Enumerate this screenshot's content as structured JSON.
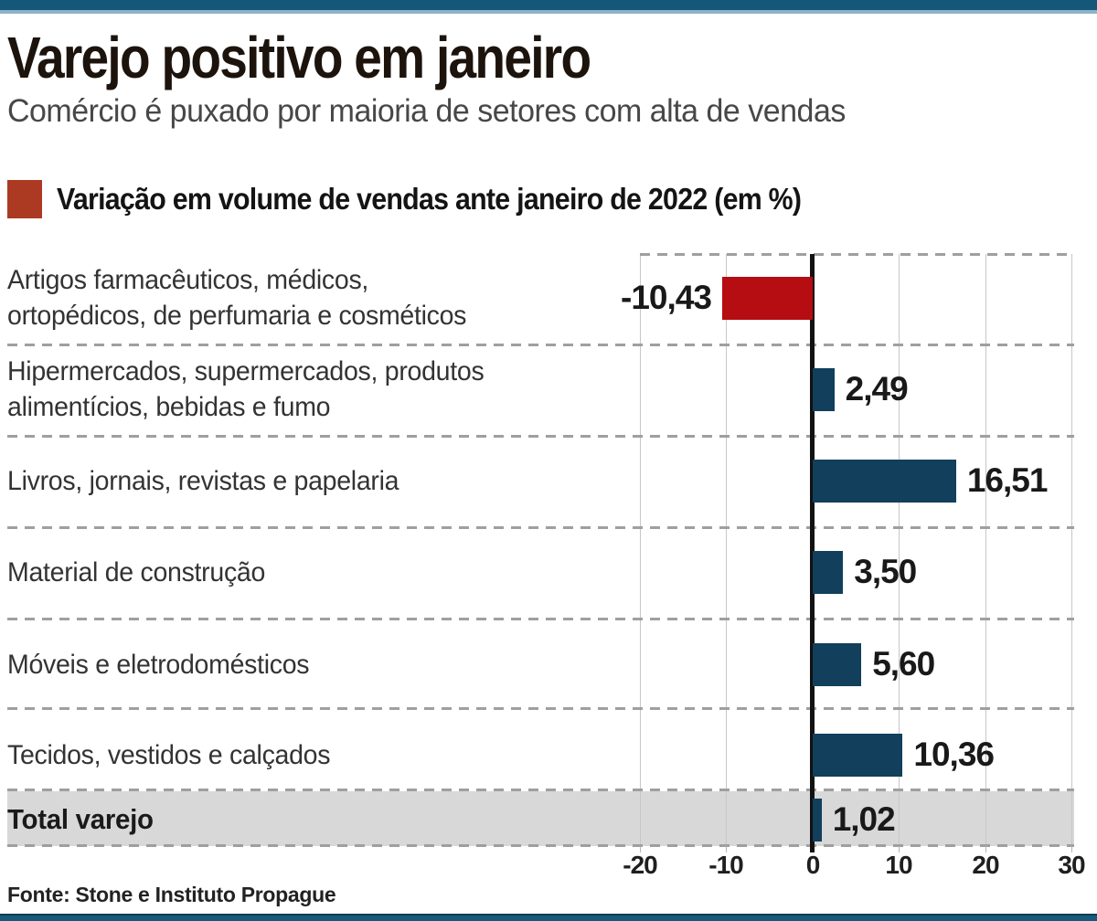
{
  "header": {
    "title": "Varejo positivo em janeiro",
    "subtitle": "Comércio é puxado por maioria de setores com alta de vendas"
  },
  "legend": {
    "label": "Variação em volume de vendas ante janeiro de 2022 (em %)",
    "chip_color": "#ac3a22"
  },
  "chart_data": {
    "type": "bar",
    "orientation": "horizontal",
    "title": "Variação em volume de vendas ante janeiro de 2022 (em %)",
    "xlabel": "",
    "ylabel": "",
    "xlim": [
      -20,
      30
    ],
    "x_ticks": [
      "-20",
      "-10",
      "0",
      "10",
      "20",
      "30"
    ],
    "grid": "vertical-solid-with-dashed-row-separators",
    "negative_color": "#b50d12",
    "positive_color": "#113f5c",
    "rows": [
      {
        "label": "Artigos farmacêuticos, médicos,\nortopédicos, de perfumaria e cosméticos",
        "value": -10.43,
        "value_label": "-10,43",
        "negative": true,
        "highlight": false
      },
      {
        "label": "Hipermercados, supermercados, produtos\nalimentícios, bebidas e fumo",
        "value": 2.49,
        "value_label": "2,49",
        "negative": false,
        "highlight": false
      },
      {
        "label": "Livros, jornais, revistas e papelaria",
        "value": 16.51,
        "value_label": "16,51",
        "negative": false,
        "highlight": false
      },
      {
        "label": "Material de construção",
        "value": 3.5,
        "value_label": "3,50",
        "negative": false,
        "highlight": false
      },
      {
        "label": "Móveis e eletrodomésticos",
        "value": 5.6,
        "value_label": "5,60",
        "negative": false,
        "highlight": false
      },
      {
        "label": "Tecidos, vestidos e calçados",
        "value": 10.36,
        "value_label": "10,36",
        "negative": false,
        "highlight": false
      },
      {
        "label": "Total varejo",
        "value": 1.02,
        "value_label": "1,02",
        "negative": false,
        "highlight": true
      }
    ]
  },
  "footer": {
    "source": "Fonte: Stone e Instituto Propague"
  },
  "colors": {
    "top_bar": "#155779",
    "top_strip": "#8cb3ca",
    "bottom_bar": "#17597b",
    "total_band": "#d8d8d8"
  }
}
